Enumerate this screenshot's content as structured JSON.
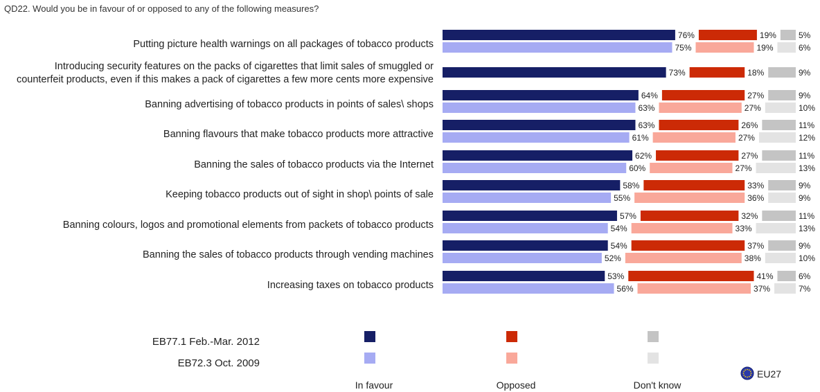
{
  "question": "QD22. Would you be in favour of or opposed to any of the following measures?",
  "colors": {
    "in_favour_2012": "#161f66",
    "in_favour_2009": "#a6abf3",
    "opposed_2012": "#cc2a06",
    "opposed_2009": "#f9a89a",
    "dont_know_2012": "#c4c4c4",
    "dont_know_2009": "#e3e3e3"
  },
  "chart_data": {
    "type": "bar",
    "stacked": true,
    "orientation": "horizontal",
    "title": "QD22. Would you be in favour of or opposed to any of the following measures?",
    "categories": [
      [
        "Putting picture health warnings on all packages of tobacco products"
      ],
      [
        "Introducing security features on the packs of cigarettes that limit sales of smuggled or",
        "counterfeit products, even if this makes a pack of cigarettes a few more cents more expensive"
      ],
      [
        "Banning advertising of tobacco products in points of sales\\ shops"
      ],
      [
        "Banning flavours that make tobacco products more attractive"
      ],
      [
        "Banning the sales of tobacco products via the Internet"
      ],
      [
        "Keeping tobacco products out of sight in shop\\ points of sale"
      ],
      [
        "Banning colours, logos and promotional elements from packets of tobacco products"
      ],
      [
        "Banning the sales of tobacco products through vending machines"
      ],
      [
        "Increasing taxes on tobacco products"
      ]
    ],
    "series": [
      {
        "name": "EB77.1 Feb.-Mar. 2012",
        "in_favour": [
          76,
          73,
          64,
          63,
          62,
          58,
          57,
          54,
          53
        ],
        "opposed": [
          19,
          18,
          27,
          26,
          27,
          33,
          32,
          37,
          41
        ],
        "dont_know": [
          5,
          9,
          9,
          11,
          11,
          9,
          11,
          9,
          6
        ]
      },
      {
        "name": "EB72.3 Oct. 2009",
        "in_favour": [
          75,
          null,
          63,
          61,
          60,
          55,
          54,
          52,
          56
        ],
        "opposed": [
          19,
          null,
          27,
          27,
          27,
          36,
          33,
          38,
          37
        ],
        "dont_know": [
          6,
          null,
          10,
          12,
          13,
          9,
          13,
          10,
          7
        ]
      }
    ],
    "value_suffix": "%",
    "legend": {
      "rows": [
        "EB77.1 Feb.-Mar. 2012",
        "EB72.3 Oct. 2009"
      ],
      "columns": [
        "In favour",
        "Opposed",
        "Don't know"
      ],
      "region": "EU27"
    }
  }
}
